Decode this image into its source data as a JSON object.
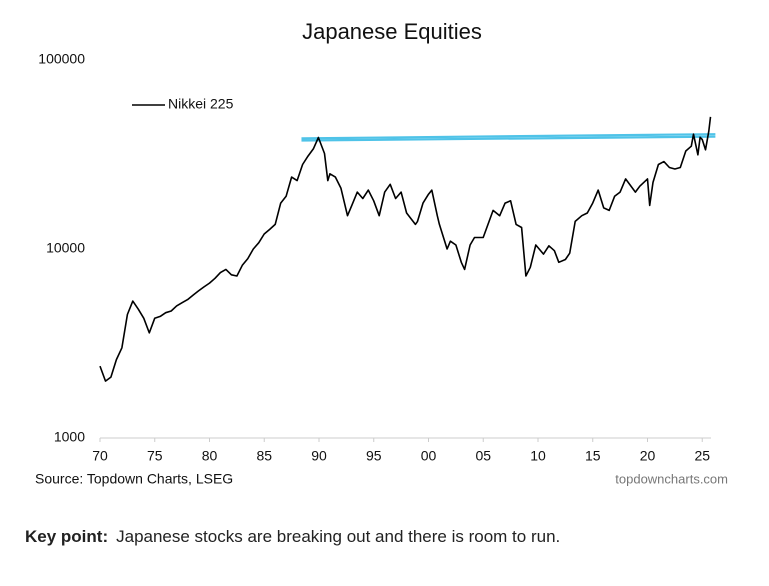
{
  "chart_data": {
    "type": "line",
    "title": "Japanese Equities",
    "log_y": true,
    "source": "Source: Topdown Charts, LSEG",
    "watermark": "topdowncharts.com",
    "legend": "upper-left",
    "xlim": [
      1970,
      2025.8
    ],
    "xticks": [
      {
        "value": 1970,
        "label": "70"
      },
      {
        "value": 1975,
        "label": "75"
      },
      {
        "value": 1980,
        "label": "80"
      },
      {
        "value": 1985,
        "label": "85"
      },
      {
        "value": 1990,
        "label": "90"
      },
      {
        "value": 1995,
        "label": "95"
      },
      {
        "value": 2000,
        "label": "00"
      },
      {
        "value": 2005,
        "label": "05"
      },
      {
        "value": 2010,
        "label": "10"
      },
      {
        "value": 2015,
        "label": "15"
      },
      {
        "value": 2020,
        "label": "20"
      },
      {
        "value": 2025,
        "label": "25"
      }
    ],
    "ylim": [
      1000,
      100000
    ],
    "yticks": [
      1000,
      10000,
      100000
    ],
    "x": [
      1970,
      1970.5,
      1971,
      1971.5,
      1972,
      1972.5,
      1973,
      1973.5,
      1974,
      1974.5,
      1975,
      1975.5,
      1976,
      1976.5,
      1977,
      1977.5,
      1978,
      1978.5,
      1979,
      1979.5,
      1980,
      1980.5,
      1981,
      1981.5,
      1982,
      1982.5,
      1983,
      1983.5,
      1984,
      1984.5,
      1985,
      1985.5,
      1986,
      1986.5,
      1987,
      1987.5,
      1988,
      1988.5,
      1989,
      1989.5,
      1989.95,
      1990.5,
      1990.8,
      1991,
      1991.5,
      1992,
      1992.6,
      1993,
      1993.5,
      1994,
      1994.5,
      1995,
      1995.5,
      1996,
      1996.5,
      1997,
      1997.5,
      1998,
      1998.8,
      1999,
      1999.5,
      2000,
      2000.3,
      2000.8,
      2001,
      2001.7,
      2002,
      2002.5,
      2003,
      2003.3,
      2003.8,
      2004.2,
      2005,
      2005.9,
      2006.5,
      2007,
      2007.5,
      2008,
      2008.5,
      2008.9,
      2009.3,
      2009.8,
      2010.5,
      2011,
      2011.5,
      2011.9,
      2012.5,
      2012.9,
      2013.4,
      2014,
      2014.5,
      2015,
      2015.5,
      2016,
      2016.5,
      2017,
      2017.5,
      2018,
      2018.9,
      2019.3,
      2020,
      2020.2,
      2020.5,
      2021,
      2021.5,
      2022,
      2022.5,
      2023,
      2023.5,
      2024,
      2024.2,
      2024.6,
      2024.8,
      2025,
      2025.3,
      2025.6,
      2025.75
    ],
    "series": [
      {
        "name": "Nikkei 225",
        "color": "#000000",
        "values": [
          2400,
          2000,
          2100,
          2600,
          3000,
          4500,
          5300,
          4800,
          4300,
          3600,
          4300,
          4400,
          4600,
          4700,
          5000,
          5200,
          5400,
          5700,
          6000,
          6300,
          6600,
          7000,
          7500,
          7800,
          7300,
          7200,
          8200,
          8900,
          10000,
          10800,
          12000,
          12700,
          13500,
          17500,
          19000,
          24000,
          23000,
          28000,
          31000,
          34000,
          38900,
          32000,
          23000,
          25000,
          24000,
          21000,
          15000,
          17000,
          20000,
          18500,
          20500,
          18000,
          15000,
          20000,
          22000,
          18500,
          20000,
          15500,
          13500,
          14000,
          17500,
          19500,
          20500,
          15000,
          13500,
          10000,
          11000,
          10500,
          8500,
          7800,
          10500,
          11500,
          11500,
          16000,
          15000,
          17500,
          18000,
          13500,
          13000,
          7200,
          8000,
          10500,
          9400,
          10400,
          9800,
          8500,
          8800,
          9500,
          14000,
          15000,
          15500,
          17500,
          20500,
          16500,
          16000,
          19000,
          20000,
          23500,
          20000,
          21500,
          23500,
          17000,
          22500,
          28000,
          29000,
          27000,
          26500,
          27000,
          33000,
          35000,
          40500,
          31500,
          39000,
          38000,
          33500,
          42000,
          50000
        ]
      }
    ],
    "reference_lines": {
      "color": "#4fc3e8",
      "x": [
        1988.4,
        2026.2
      ],
      "lines": [
        [
          38500,
          40500
        ],
        [
          37500,
          39300
        ]
      ]
    }
  },
  "note": {
    "label": "Key point:",
    "text": "Japanese stocks are breaking out and there is room to run."
  }
}
